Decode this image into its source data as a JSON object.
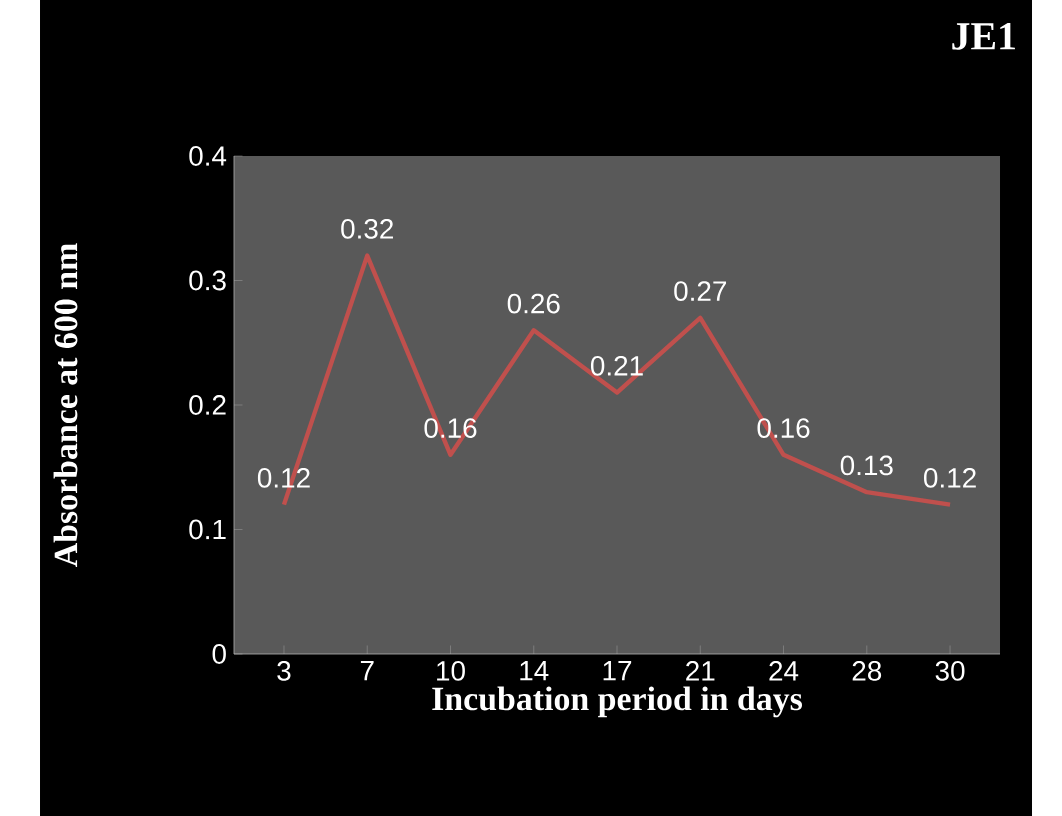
{
  "chart_data": {
    "type": "line",
    "title": "JE1",
    "xlabel": "Incubation period in days",
    "ylabel": "Absorbance at 600 nm",
    "categories": [
      "3",
      "7",
      "10",
      "14",
      "17",
      "21",
      "24",
      "28",
      "30"
    ],
    "series": [
      {
        "color": "#c0504d",
        "values": [
          0.12,
          0.32,
          0.16,
          0.26,
          0.21,
          0.27,
          0.16,
          0.13,
          0.12
        ]
      }
    ],
    "ylim": [
      0,
      0.4
    ],
    "yticks": [
      0,
      0.1,
      0.2,
      0.3,
      0.4
    ],
    "data_labels": true,
    "grid": false,
    "marker": "none",
    "line_style": "solid"
  }
}
